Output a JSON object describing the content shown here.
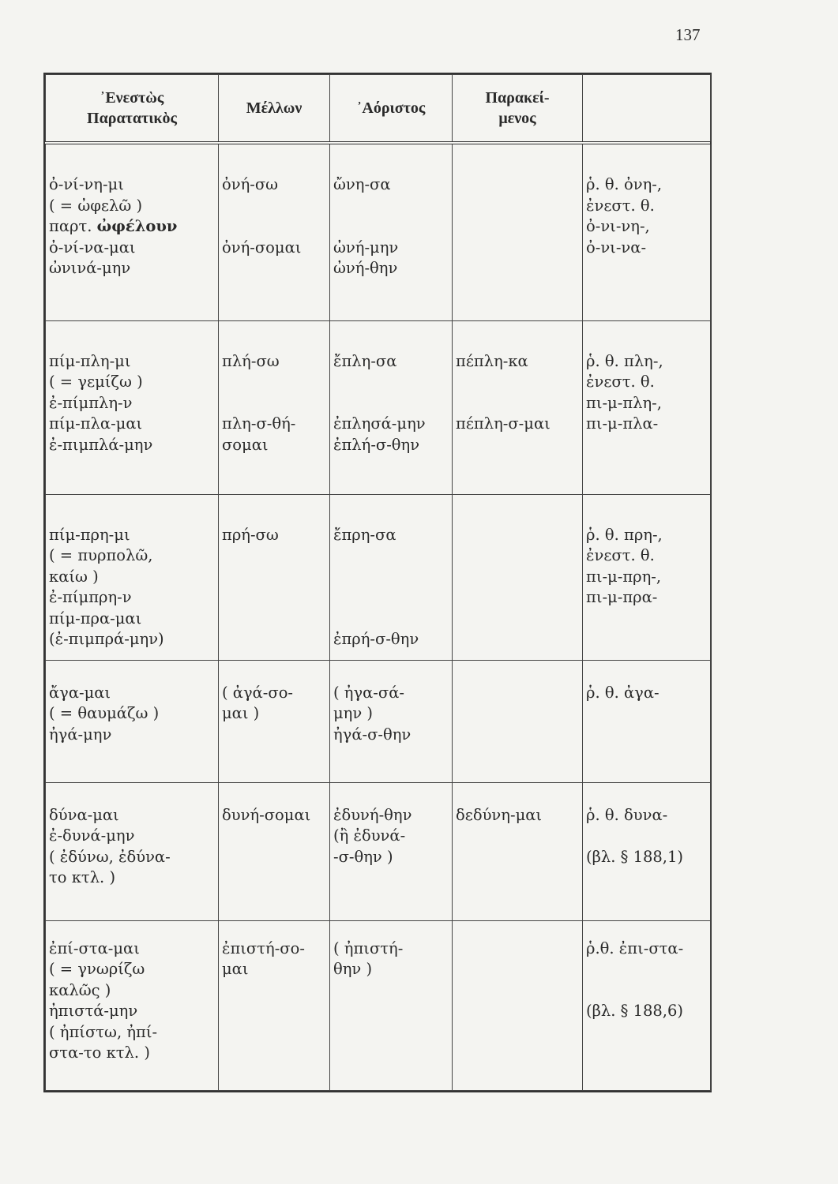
{
  "page_number": "137",
  "table": {
    "headers": [
      "᾿Ενεστὼς\nΠαρατατικὸς",
      "Μέλλων",
      "᾿Αόριστος",
      "Παρακεί-\nμενος",
      ""
    ],
    "rows": [
      {
        "cells": [
          [
            "ὀ-νί-νη-μι",
            "( = ὠφελῶ )",
            [
              {
                "text": "παρτ. "
              },
              {
                "text": "ὠφέλουν",
                "bold": true
              }
            ],
            "ὀ-νί-να-μαι",
            "ὠνινά-μην"
          ],
          [
            "ὀνή-σω",
            "",
            "",
            "ὀνή-σομαι"
          ],
          [
            "ὤνη-σα",
            "",
            "",
            "ὠνή-μην",
            "ὠνή-θην"
          ],
          [],
          [
            "ῥ. θ. ὀνη-,",
            "ἐνεστ. θ.",
            "ὀ-νι-νη-,",
            "ὀ-νι-να-"
          ]
        ]
      },
      {
        "cells": [
          [
            "πίμ-πλη-μι",
            "( = γεμίζω )",
            "ἐ-πίμπλη-ν",
            "πίμ-πλα-μαι",
            "ἐ-πιμπλά-μην"
          ],
          [
            "πλή-σω",
            "",
            "",
            "πλη-σ-θή-",
            "σομαι"
          ],
          [
            "ἔπλη-σα",
            "",
            "",
            "ἐπλησά-μην",
            "ἐπλή-σ-θην"
          ],
          [
            "πέπλη-κα",
            "",
            "",
            "πέπλη-σ-μαι"
          ],
          [
            "ῥ. θ. πλη-,",
            "ἐνεστ. θ.",
            "πι-μ-πλη-,",
            "πι-μ-πλα-"
          ]
        ]
      },
      {
        "cells": [
          [
            "πίμ-πρη-μι",
            "( = πυρπολῶ,",
            "καίω )",
            "ἐ-πίμπρη-ν",
            "πίμ-πρα-μαι",
            "(ἐ-πιμπρά-μην)"
          ],
          [
            "πρή-σω"
          ],
          [
            "ἔπρη-σα",
            "",
            "",
            "",
            "",
            "ἐπρή-σ-θην"
          ],
          [],
          [
            "ῥ. θ. πρη-,",
            "ἐνεστ. θ.",
            "πι-μ-πρη-,",
            "πι-μ-πρα-"
          ]
        ]
      },
      {
        "cells": [
          [
            "ἄγα-μαι",
            "( = θαυμάζω )",
            "ἠγά-μην"
          ],
          [
            "( ἀγά-σο-",
            "μαι )"
          ],
          [
            "( ἠγα-σά-",
            "μην )",
            "ἠγά-σ-θην"
          ],
          [],
          [
            "ῥ. θ. ἀγα-"
          ]
        ]
      },
      {
        "cells": [
          [
            "δύνα-μαι",
            "ἐ-δυνά-μην",
            "( ἐδύνω, ἐδύνα-",
            "το κτλ. )"
          ],
          [
            "δυνή-σομαι"
          ],
          [
            "ἐδυνή-θην",
            "(ἢ ἐδυνά-",
            "-σ-θην )"
          ],
          [
            "δεδύνη-μαι"
          ],
          [
            "ῥ. θ. δυνα-",
            "",
            "(βλ. § 188,1)"
          ]
        ]
      },
      {
        "cells": [
          [
            "ἐπί-στα-μαι",
            "( = γνωρίζω",
            "καλῶς )",
            "ἠπιστά-μην",
            "( ἠπίστω, ἠπί-",
            "στα-το κτλ. )"
          ],
          [
            "ἐπιστή-σο-",
            "μαι"
          ],
          [
            "( ἠπιστή-",
            "θην )"
          ],
          [],
          [
            "ῥ.θ. ἐπι-στα-",
            "",
            "",
            "(βλ. § 188,6)"
          ]
        ]
      }
    ]
  }
}
